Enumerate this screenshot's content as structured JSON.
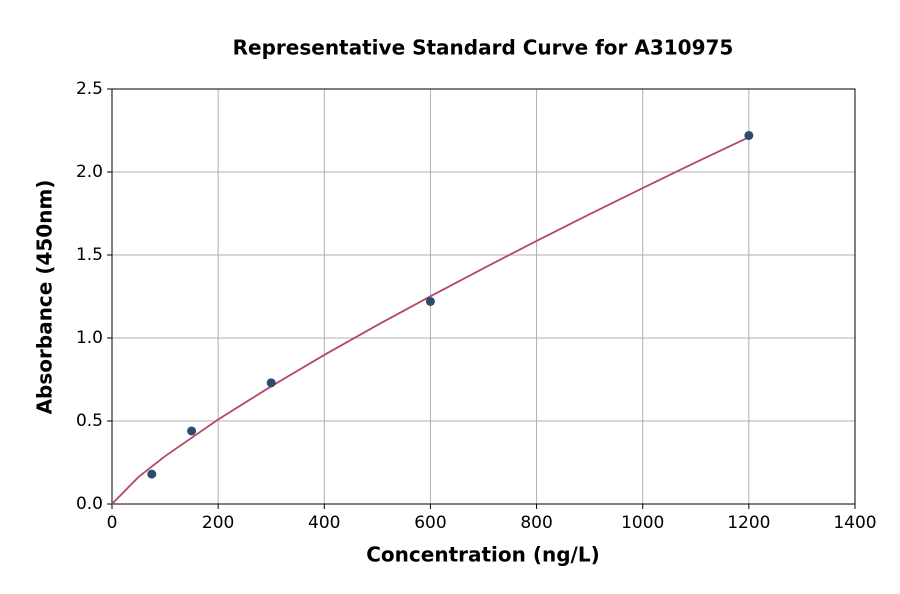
{
  "chart_data": {
    "type": "scatter",
    "title": "Representative Standard Curve for A310975",
    "x_label": "Concentration (ng/L)",
    "y_label": "Absorbance (450nm)",
    "xlim": [
      0,
      1400
    ],
    "ylim": [
      0,
      2.5
    ],
    "xticks": [
      0,
      200,
      400,
      600,
      800,
      1000,
      1200,
      1400
    ],
    "yticks": [
      {
        "value": 0,
        "label": "0.0"
      },
      0.5,
      {
        "value": 1,
        "label": "1.0"
      },
      1.5,
      {
        "value": 2,
        "label": "2.0"
      },
      2.5
    ],
    "grid": true,
    "series": [
      {
        "type": "scatter",
        "color": "#2e4a6e",
        "x": [
          75,
          150,
          300,
          600,
          1200
        ],
        "values": [
          0.18,
          0.44,
          0.73,
          1.22,
          2.22
        ]
      },
      {
        "type": "line",
        "color": "#b5476a",
        "x": [
          0,
          50,
          100,
          200,
          300,
          400,
          500,
          600,
          700,
          800,
          900,
          1000,
          1100,
          1200
        ],
        "values": [
          0,
          0.163,
          0.288,
          0.509,
          0.709,
          0.898,
          1.078,
          1.251,
          1.42,
          1.585,
          1.746,
          1.903,
          2.058,
          2.21
        ]
      }
    ]
  }
}
